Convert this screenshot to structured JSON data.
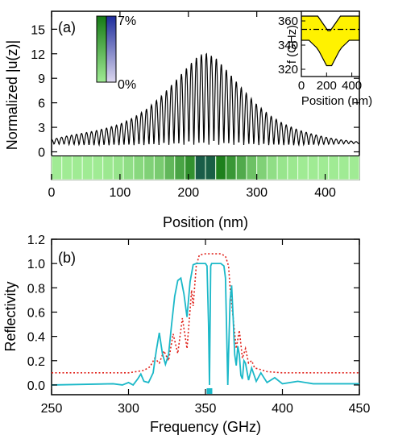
{
  "chart_data": [
    {
      "panel": "(a)",
      "type": "line",
      "xlabel": "Position (nm)",
      "ylabel": "Normalized |u(z)|",
      "xlim": [
        0,
        450
      ],
      "ylim": [
        -3.4,
        17.2
      ],
      "xticks": [
        0,
        100,
        200,
        300,
        400
      ],
      "yticks": [
        0,
        3,
        6,
        9,
        12,
        15
      ],
      "series": [
        {
          "values_description": "standing-wave envelope",
          "envelope": {
            "x": [
              0,
              20,
              40,
              60,
              80,
              100,
              120,
              140,
              160,
              180,
              200,
              215,
              225,
              240,
              260,
              280,
              300,
              320,
              340,
              360,
              380,
              400,
              420,
              440,
              450
            ],
            "max": [
              1.5,
              1.9,
              2.2,
              2.5,
              2.9,
              3.4,
              4.2,
              5.3,
              6.8,
              8.6,
              10.5,
              11.8,
              12.1,
              11.5,
              9.6,
              7.6,
              5.8,
              4.4,
              3.4,
              2.7,
              2.2,
              1.8,
              1.5,
              1.3,
              1.2
            ],
            "min": [
              0.95,
              0.9,
              0.85,
              0.8,
              0.8,
              0.8,
              0.8,
              0.8,
              0.8,
              0.8,
              0.8,
              0.8,
              0.8,
              0.8,
              0.8,
              0.8,
              0.8,
              0.8,
              0.8,
              0.8,
              0.85,
              0.9,
              0.95,
              1.0,
              1.0
            ]
          },
          "period_nm": 7.3
        }
      ],
      "layer_strip": {
        "y_range": [
          -3.4,
          -0.5
        ],
        "cell_edges_nm": [
          0,
          15,
          30,
          45,
          60,
          75,
          90,
          105,
          120,
          135,
          150,
          165,
          180,
          195,
          210,
          225,
          240,
          255,
          270,
          285,
          300,
          315,
          330,
          345,
          360,
          375,
          390,
          405,
          420,
          435,
          450
        ],
        "fill_percent": [
          0.0,
          0.0,
          0.0,
          0.0,
          0.0,
          0.2,
          0.4,
          0.8,
          1.2,
          1.6,
          2.0,
          3.2,
          4.4,
          5.6,
          6.6,
          7.0,
          6.6,
          5.2,
          4.0,
          2.6,
          1.6,
          0.8,
          0.4,
          0.2,
          0.0,
          0.0,
          0.0,
          0.0,
          0.0,
          0.0
        ],
        "tint": [
          "green",
          "green",
          "green",
          "green",
          "green",
          "green",
          "green",
          "green",
          "green",
          "green",
          "green",
          "green",
          "green",
          "green",
          "blue",
          "blue",
          "green",
          "green",
          "green",
          "green",
          "green",
          "green",
          "green",
          "green",
          "green",
          "green",
          "green",
          "green",
          "green",
          "green"
        ]
      },
      "colorbar": {
        "max_label": "7%",
        "min_label": "0%",
        "colors": {
          "green_top": "#167a16",
          "green_bottom": "#a0eb94",
          "blue_top": "#1e2d9c",
          "blue_bottom": "#ddd8ef"
        }
      },
      "inset": {
        "xlabel": "Position (nm)",
        "ylabel": "f (GHz)",
        "xlim": [
          0,
          460
        ],
        "ylim": [
          314,
          368
        ],
        "xticks": [
          0,
          200,
          400
        ],
        "yticks": [
          320,
          340,
          360
        ],
        "dashdot_line": 353,
        "band_fill_color": "#fff200",
        "band_upper": {
          "x": [
            0,
            130,
            150,
            170,
            190,
            210,
            230,
            250,
            270,
            290,
            310,
            460
          ],
          "y": [
            364,
            364,
            361,
            358,
            355,
            352,
            352,
            355,
            358,
            361,
            364,
            364
          ]
        },
        "band_lower": {
          "x": [
            0,
            60,
            80,
            100,
            120,
            140,
            160,
            180,
            200,
            240,
            260,
            280,
            300,
            320,
            340,
            360,
            380,
            460
          ],
          "y": [
            344,
            344,
            342,
            340,
            338,
            335,
            331,
            327,
            323,
            323,
            327,
            331,
            335,
            338,
            340,
            342,
            344,
            344
          ]
        }
      }
    },
    {
      "panel": "(b)",
      "type": "line",
      "xlabel": "Frequency (GHz)",
      "ylabel": "Reflectivity",
      "xlim": [
        250,
        450
      ],
      "ylim": [
        -0.08,
        1.2
      ],
      "xticks": [
        250,
        300,
        350,
        400,
        450
      ],
      "yticks": [
        0.0,
        0.2,
        0.4,
        0.6,
        0.8,
        1.0,
        1.2
      ],
      "ytick_labels": [
        "0.0",
        "0.2",
        "0.4",
        "0.6",
        "0.8",
        "1.0",
        "1.2"
      ],
      "series": [
        {
          "style": "solid",
          "color": "#1bb8c8",
          "x": [
            250,
            290,
            296,
            300,
            303,
            306,
            308,
            310,
            313,
            316,
            318,
            320,
            322,
            324,
            326,
            328,
            330,
            332,
            334,
            336,
            338,
            340,
            342,
            344,
            346,
            348,
            350,
            351,
            352,
            352.6,
            353,
            353.4,
            354,
            356,
            358,
            360,
            362,
            363,
            364,
            364.5,
            365,
            366,
            367,
            368,
            369,
            370,
            371,
            372,
            373,
            374,
            375,
            376,
            378,
            380,
            383,
            386,
            390,
            395,
            400,
            410,
            420,
            435,
            450
          ],
          "y": [
            0.0,
            0.01,
            0.0,
            0.02,
            0.0,
            0.05,
            0.09,
            0.03,
            0.02,
            0.1,
            0.28,
            0.43,
            0.26,
            0.17,
            0.25,
            0.5,
            0.73,
            0.86,
            0.88,
            0.75,
            0.56,
            0.85,
            0.99,
            1.0,
            1.0,
            1.0,
            1.0,
            0.98,
            0.5,
            0.0,
            0.5,
            0.98,
            1.0,
            1.0,
            1.0,
            1.0,
            0.98,
            0.88,
            0.3,
            0.0,
            0.25,
            0.7,
            0.82,
            0.55,
            0.25,
            0.16,
            0.32,
            0.25,
            0.08,
            0.05,
            0.2,
            0.18,
            0.04,
            0.14,
            0.03,
            0.1,
            0.02,
            0.06,
            0.01,
            0.03,
            0.01,
            0.01,
            0.01
          ]
        },
        {
          "style": "dotted",
          "color": "#e0231c",
          "x": [
            250,
            300,
            310,
            314,
            317,
            320,
            323,
            326,
            329,
            332,
            335,
            338,
            341,
            342,
            344,
            346,
            350,
            356,
            360,
            363,
            365,
            366,
            368,
            370,
            372,
            374,
            376,
            378,
            380,
            382,
            385,
            390,
            400,
            420,
            450
          ],
          "y": [
            0.1,
            0.1,
            0.12,
            0.15,
            0.22,
            0.18,
            0.28,
            0.2,
            0.42,
            0.26,
            0.55,
            0.3,
            0.78,
            0.65,
            0.98,
            1.07,
            1.08,
            1.08,
            1.08,
            1.06,
            0.98,
            0.8,
            0.55,
            0.3,
            0.45,
            0.22,
            0.3,
            0.18,
            0.2,
            0.14,
            0.13,
            0.11,
            0.1,
            0.1,
            0.1
          ]
        }
      ],
      "marker": {
        "x": 352.6,
        "y": -0.05,
        "color": "#1bb8c8"
      }
    }
  ],
  "text": {
    "a_panel": "(a)",
    "b_panel": "(b)",
    "a_xlabel": "Position (nm)",
    "a_ylabel": "Normalized |u(z)|",
    "b_xlabel": "Frequency (GHz)",
    "b_ylabel": "Reflectivity",
    "inset_xlabel": "Position (nm)",
    "inset_ylabel": "f (GHz)",
    "cb_max": "7%",
    "cb_min": "0%"
  }
}
